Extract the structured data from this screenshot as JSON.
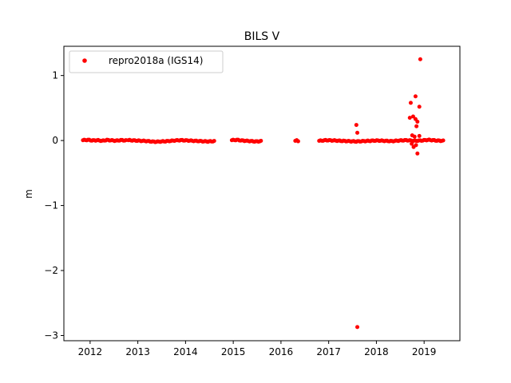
{
  "chart_data": {
    "type": "scatter",
    "title": "BILS V",
    "xlabel": "",
    "ylabel": "m",
    "xlim": [
      2011.45,
      2019.75
    ],
    "ylim": [
      -3.08,
      1.45
    ],
    "xticks": [
      2012,
      2013,
      2014,
      2015,
      2016,
      2017,
      2018,
      2019
    ],
    "xtick_labels": [
      "2012",
      "2013",
      "2014",
      "2015",
      "2016",
      "2017",
      "2018",
      "2019"
    ],
    "yticks": [
      1,
      0,
      -1,
      -2,
      -3
    ],
    "ytick_labels": [
      "1",
      "0",
      "−1",
      "−2",
      "−3"
    ],
    "grid": false,
    "legend": {
      "position": "top-left",
      "entries": [
        "repro2018a (IGS14)"
      ]
    },
    "series": [
      {
        "name": "repro2018a (IGS14)",
        "color": "#ff0000",
        "marker": "circle",
        "segments": [
          {
            "x_start": 2011.85,
            "x_end": 2012.75,
            "y_values": [
              0.005,
              0.01,
              0.0,
              0.005,
              -0.005,
              0.008,
              0.002,
              -0.003,
              0.006,
              0.0
            ]
          },
          {
            "x_start": 2012.8,
            "x_end": 2014.6,
            "y_values": [
              0.005,
              0.0,
              -0.005,
              -0.01,
              -0.02,
              -0.015,
              -0.01,
              0.0,
              0.005,
              0.0,
              -0.005,
              -0.01,
              -0.015,
              -0.01
            ]
          },
          {
            "x_start": 2014.97,
            "x_end": 2015.58,
            "y_values": [
              0.005,
              0.01,
              0.0,
              -0.005,
              -0.01,
              -0.015,
              -0.01
            ]
          },
          {
            "x_start": 2016.3,
            "x_end": 2016.36,
            "y_values": [
              -0.005,
              0.0,
              -0.01
            ]
          },
          {
            "x_start": 2016.8,
            "x_end": 2019.4,
            "y_values": [
              -0.005,
              0.005,
              0.0,
              -0.005,
              -0.01,
              -0.015,
              -0.01,
              -0.005,
              0.0,
              -0.005,
              -0.01,
              0.0,
              0.005,
              -0.005,
              0.0,
              0.01,
              0.0,
              -0.005
            ]
          }
        ],
        "outliers": [
          {
            "x": 2017.58,
            "y": 0.24
          },
          {
            "x": 2017.6,
            "y": 0.12
          },
          {
            "x": 2017.6,
            "y": -2.87
          },
          {
            "x": 2018.7,
            "y": 0.35
          },
          {
            "x": 2018.72,
            "y": 0.58
          },
          {
            "x": 2018.77,
            "y": 0.37
          },
          {
            "x": 2018.82,
            "y": 0.68
          },
          {
            "x": 2018.82,
            "y": 0.33
          },
          {
            "x": 2018.84,
            "y": 0.22
          },
          {
            "x": 2018.86,
            "y": 0.29
          },
          {
            "x": 2018.9,
            "y": 0.52
          },
          {
            "x": 2018.92,
            "y": 1.25
          },
          {
            "x": 2018.75,
            "y": 0.08
          },
          {
            "x": 2018.8,
            "y": 0.06
          },
          {
            "x": 2018.9,
            "y": 0.07
          },
          {
            "x": 2018.74,
            "y": -0.05
          },
          {
            "x": 2018.78,
            "y": -0.1
          },
          {
            "x": 2018.86,
            "y": -0.2
          },
          {
            "x": 2018.83,
            "y": -0.07
          }
        ]
      }
    ]
  }
}
